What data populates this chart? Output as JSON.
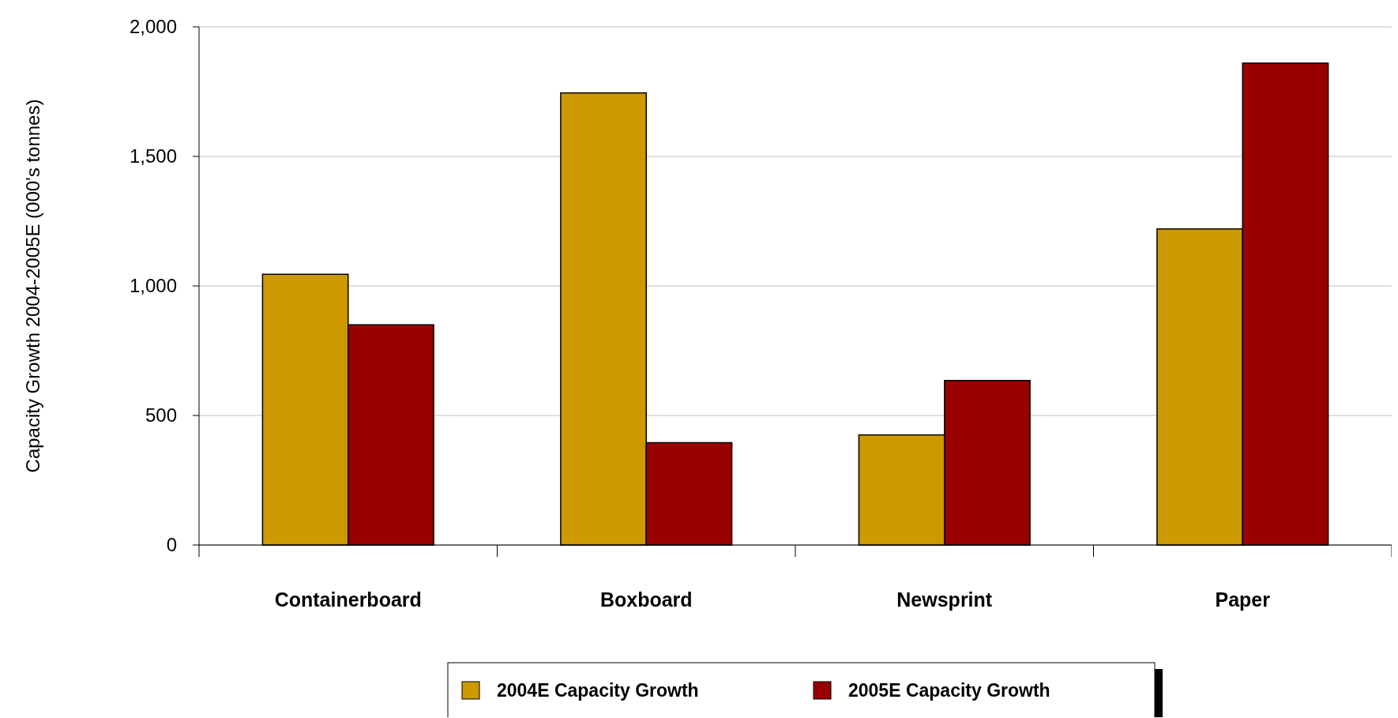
{
  "chart_data": {
    "type": "bar",
    "ylabel": "Capacity Growth 2004-2005E (000's tonnes)",
    "categories": [
      "Containerboard",
      "Boxboard",
      "Newsprint",
      "Paper"
    ],
    "series": [
      {
        "name": "2004E Capacity Growth",
        "color": "#cc9900",
        "values": [
          1045,
          1745,
          425,
          1220
        ]
      },
      {
        "name": "2005E Capacity Growth",
        "color": "#990000",
        "values": [
          850,
          395,
          635,
          1860
        ]
      }
    ],
    "ylim": [
      0,
      2000
    ],
    "yticks": [
      0,
      {
        "value": 500,
        "label": "500"
      },
      {
        "value": 1000,
        "label": "1,000"
      },
      {
        "value": 1500,
        "label": "1,500"
      },
      {
        "value": 2000,
        "label": "2,000"
      }
    ],
    "grid": "y",
    "legend": "bottom"
  }
}
